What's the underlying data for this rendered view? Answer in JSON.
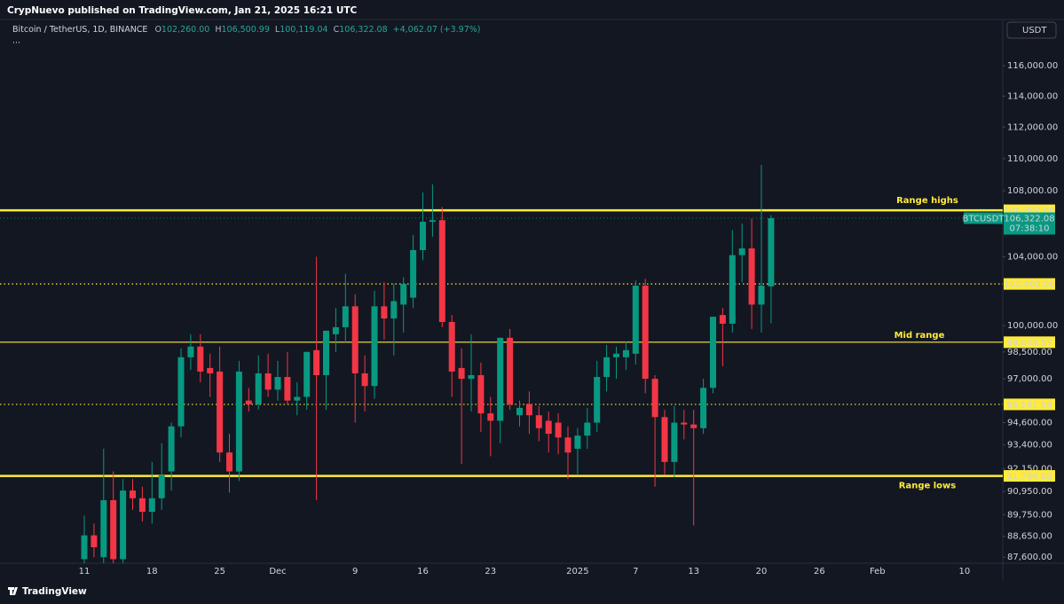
{
  "header": {
    "published": "CrypNuevo published on TradingView.com, Jan 21, 2025 16:21 UTC"
  },
  "legend": {
    "symbol": "Bitcoin / TetherUS, 1D, BINANCE",
    "ohlc": [
      {
        "key": "O",
        "value": "102,260.00"
      },
      {
        "key": "H",
        "value": "106,500.99"
      },
      {
        "key": "L",
        "value": "100,119.04"
      },
      {
        "key": "C",
        "value": "106,322.08"
      }
    ],
    "change": "+4,062.07 (+3.97%)",
    "more": "..."
  },
  "currency": "USDT",
  "footer": {
    "brand": "TradingView"
  },
  "price_badge": {
    "symbol": "BTCUSDT",
    "price": "106,322.08",
    "countdown": "07:38:10",
    "color": "#089981"
  },
  "chart_data": {
    "type": "candlestick",
    "log_scale": true,
    "grid": false,
    "up_color": "#089981",
    "down_color": "#f23645",
    "categories": [
      "11",
      null,
      null,
      null,
      null,
      null,
      null,
      "18",
      null,
      null,
      null,
      null,
      null,
      null,
      "25",
      null,
      null,
      null,
      null,
      null,
      "Dec",
      null,
      null,
      null,
      null,
      null,
      null,
      null,
      "9",
      null,
      null,
      null,
      null,
      null,
      null,
      "16",
      null,
      null,
      null,
      null,
      null,
      null,
      "23",
      null,
      null,
      null,
      null,
      null,
      null,
      null,
      null,
      "2025",
      null,
      null,
      null,
      null,
      null,
      "7",
      null,
      null,
      null,
      null,
      null,
      "13",
      null,
      null,
      null,
      null,
      null,
      null,
      "20",
      null,
      null,
      null,
      null,
      null,
      "26",
      null,
      null,
      null,
      null,
      null,
      "Feb",
      null,
      null,
      null,
      null,
      null,
      null,
      null,
      null,
      "10",
      null,
      null,
      null,
      null
    ],
    "open": [
      87500,
      88700,
      87600,
      90500,
      87500,
      91000,
      90600,
      89900,
      90600,
      92000,
      94400,
      98200,
      98800,
      97600,
      97400,
      93000,
      92000,
      95800,
      95600,
      97300,
      96400,
      97100,
      95800,
      96000,
      98600,
      97200,
      99500,
      99900,
      101100,
      97300,
      96600,
      101100,
      100400,
      101200,
      101600,
      104400,
      106100,
      106200,
      100200,
      97600,
      97000,
      97200,
      95100,
      94700,
      99300,
      95000,
      95600,
      95000,
      94700,
      94600,
      93800,
      93200,
      93900,
      94600,
      97100,
      98200,
      98200,
      98400,
      102300,
      97000,
      94900,
      92500,
      94600,
      94500,
      94300,
      96500,
      100600,
      100100,
      104100,
      104500,
      101200,
      102260,
      null,
      null,
      null,
      null,
      null,
      null,
      null,
      null,
      null,
      null,
      null,
      null,
      null,
      null,
      null,
      null,
      null,
      null,
      null,
      null,
      null,
      null,
      null,
      null
    ],
    "high": [
      89700,
      89300,
      93200,
      92000,
      91600,
      91600,
      91200,
      92500,
      93500,
      94600,
      98700,
      99500,
      99500,
      98400,
      98800,
      94000,
      98000,
      96500,
      98300,
      98400,
      98000,
      98500,
      96800,
      98500,
      104000,
      99700,
      101000,
      103000,
      101800,
      98300,
      102000,
      102500,
      102400,
      102800,
      105300,
      107900,
      108400,
      107000,
      100600,
      98700,
      99500,
      97900,
      96000,
      99300,
      99800,
      95800,
      96300,
      95500,
      95200,
      95100,
      94400,
      94300,
      95400,
      98000,
      98900,
      98800,
      99100,
      102600,
      102700,
      97200,
      95300,
      95500,
      95300,
      95300,
      97000,
      100500,
      101000,
      105600,
      106000,
      106300,
      109600,
      106500.99,
      null,
      null,
      null,
      null,
      null,
      null,
      null,
      null,
      null,
      null,
      null,
      null,
      null,
      null,
      null,
      null,
      null,
      null,
      null,
      null,
      null,
      null,
      null,
      null
    ],
    "low": [
      87300,
      87600,
      87300,
      87300,
      87300,
      90000,
      89400,
      89300,
      90000,
      91000,
      93800,
      97500,
      96800,
      96000,
      92500,
      90900,
      91500,
      95200,
      95300,
      96000,
      95800,
      95600,
      95000,
      95300,
      90500,
      95300,
      98500,
      99000,
      94600,
      95200,
      95900,
      99200,
      98300,
      99600,
      101000,
      103800,
      105200,
      99900,
      96000,
      92400,
      95200,
      94100,
      92800,
      93500,
      95300,
      94400,
      94000,
      93600,
      93000,
      92900,
      91600,
      91800,
      93200,
      94100,
      96300,
      97000,
      97500,
      97800,
      96200,
      91200,
      91800,
      91700,
      93700,
      89200,
      94000,
      96200,
      97700,
      99600,
      102500,
      99800,
      99600,
      100119.04,
      null,
      null,
      null,
      null,
      null,
      null,
      null,
      null,
      null,
      null,
      null,
      null,
      null,
      null,
      null,
      null,
      null,
      null,
      null,
      null,
      null,
      null,
      null,
      null
    ],
    "close": [
      88700,
      88100,
      90500,
      87500,
      91000,
      90600,
      89900,
      90600,
      91800,
      94400,
      98200,
      98800,
      97400,
      97300,
      93000,
      92000,
      97400,
      95600,
      97300,
      96400,
      97100,
      95800,
      96000,
      98500,
      97200,
      99700,
      99900,
      101100,
      97300,
      96600,
      101100,
      100400,
      101400,
      102400,
      104400,
      106100,
      106200,
      100200,
      97400,
      97000,
      97200,
      95100,
      94700,
      99300,
      95600,
      95400,
      95000,
      94300,
      94000,
      93800,
      93000,
      93900,
      94600,
      97100,
      98200,
      98400,
      98600,
      102300,
      97000,
      94900,
      92500,
      94600,
      94500,
      94300,
      96500,
      100500,
      100100,
      104100,
      104500,
      101200,
      102300,
      106322.08,
      null,
      null,
      null,
      null,
      null,
      null,
      null,
      null,
      null,
      null,
      null,
      null,
      null,
      null,
      null,
      null,
      null,
      null,
      null,
      null,
      null,
      null,
      null,
      null
    ],
    "ylim": [
      87300,
      119100
    ],
    "yticks": [
      {
        "value": 87600,
        "label": "87,600.00"
      },
      {
        "value": 88650,
        "label": "88,650.00"
      },
      {
        "value": 89750,
        "label": "89,750.00"
      },
      {
        "value": 90950,
        "label": "90,950.00"
      },
      {
        "value": 92150,
        "label": "92,150.00"
      },
      {
        "value": 93400,
        "label": "93,400.00"
      },
      {
        "value": 94600,
        "label": "94,600.00"
      },
      {
        "value": 97000,
        "label": "97,000.00"
      },
      {
        "value": 98500,
        "label": "98,500.00"
      },
      {
        "value": 100000,
        "label": "100,000.00"
      },
      {
        "value": 104000,
        "label": "104,000.00"
      },
      {
        "value": 108000,
        "label": "108,000.00"
      },
      {
        "value": 110000,
        "label": "110,000.00"
      },
      {
        "value": 112000,
        "label": "112,000.00"
      },
      {
        "value": 114000,
        "label": "114,000.00"
      },
      {
        "value": 116000,
        "label": "116,000.00"
      }
    ],
    "levels": [
      {
        "value": 106802.68,
        "label": "106,802.68",
        "style": "thick",
        "color": "#ffeb3b",
        "annotation": "Range highs",
        "annotation_side": "above"
      },
      {
        "value": 102400,
        "label": "102,400.00",
        "style": "dotted",
        "color": "#ffeb3b"
      },
      {
        "value": 99048.57,
        "label": "99,048.57",
        "style": "thin",
        "color": "#ffeb3b",
        "annotation": "Mid range",
        "annotation_side": "above"
      },
      {
        "value": 95591.58,
        "label": "95,591.58",
        "style": "dotted",
        "color": "#ffeb3b"
      },
      {
        "value": 91764.68,
        "label": "91,764.68",
        "style": "thick",
        "color": "#ffeb3b",
        "annotation": "Range lows",
        "annotation_side": "below"
      }
    ]
  }
}
